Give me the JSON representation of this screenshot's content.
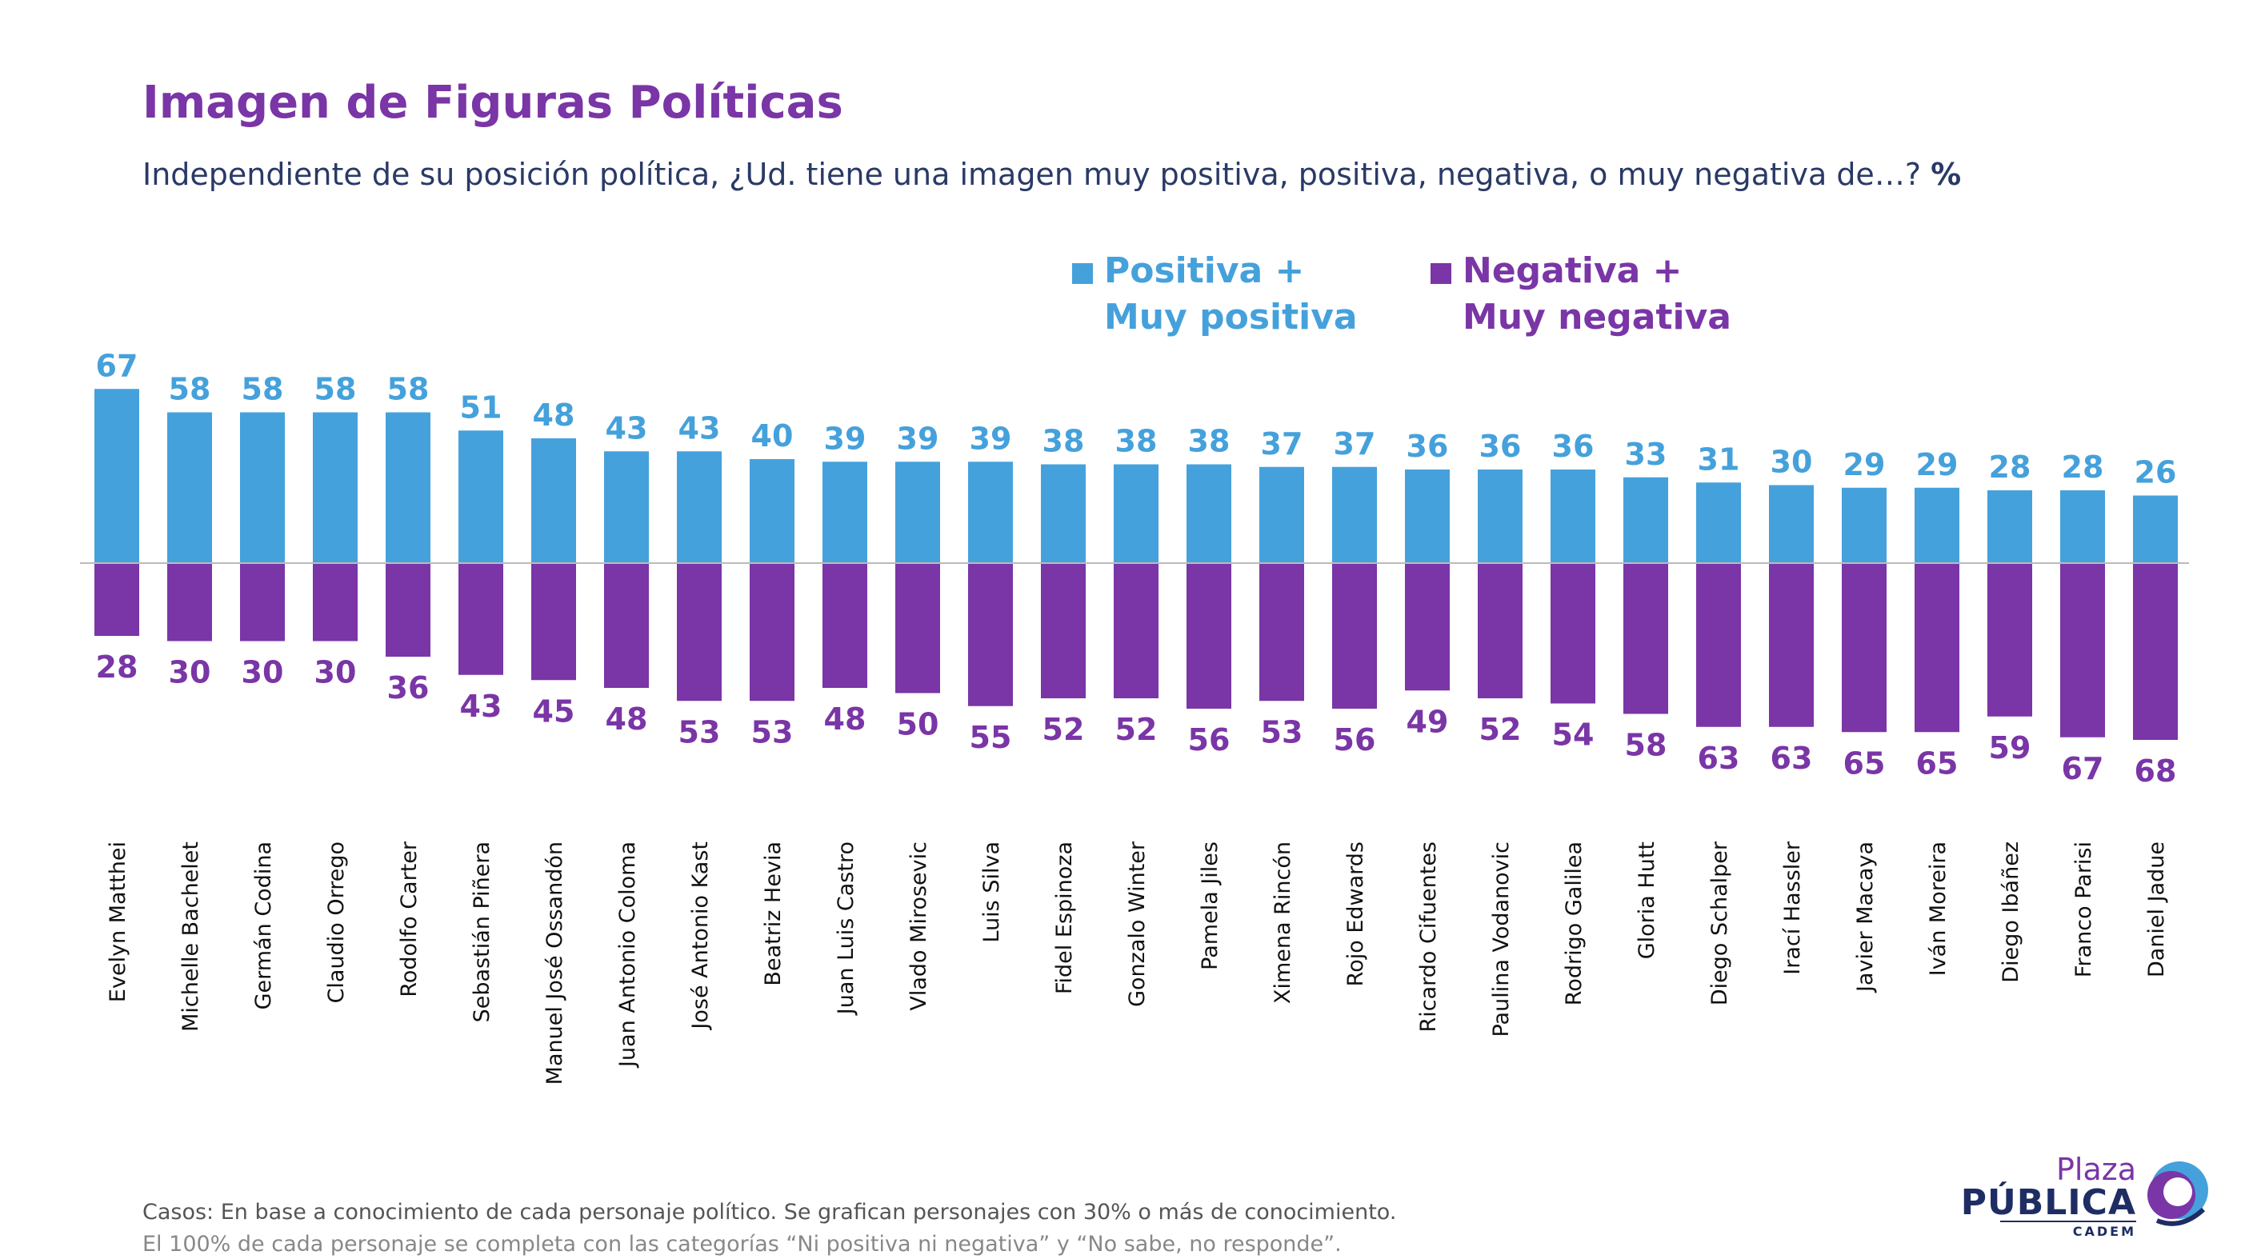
{
  "header": {
    "title": "Imagen de Figuras Políticas",
    "subtitle": "Independiente de su posición política, ¿Ud. tiene una imagen muy positiva, positiva, negativa, o muy negativa de…?",
    "subtitle_unit": "%"
  },
  "legend": {
    "positive_line1": "Positiva +",
    "positive_line2": "Muy positiva",
    "negative_line1": "Negativa +",
    "negative_line2": "Muy negativa"
  },
  "colors": {
    "positive": "#45a1db",
    "negative": "#7a35a6",
    "axis": "#bbbbbb"
  },
  "chart_data": {
    "type": "bar",
    "categories": [
      "Evelyn Matthei",
      "Michelle Bachelet",
      "Germán Codina",
      "Claudio Orrego",
      "Rodolfo Carter",
      "Sebastián Piñera",
      "Manuel José Ossandón",
      "Juan Antonio Coloma",
      "José Antonio Kast",
      "Beatriz Hevia",
      "Juan Luis Castro",
      "Vlado Mirosevic",
      "Luis Silva",
      "Fidel Espinoza",
      "Gonzalo Winter",
      "Pamela Jiles",
      "Ximena Rincón",
      "Rojo Edwards",
      "Ricardo Cifuentes",
      "Paulina Vodanovic",
      "Rodrigo Galilea",
      "Gloria Hutt",
      "Diego Schalper",
      "Irací Hassler",
      "Javier Macaya",
      "Iván Moreira",
      "Diego Ibáñez",
      "Franco Parisi",
      "Daniel Jadue"
    ],
    "series": [
      {
        "name": "Positiva + Muy positiva",
        "values": [
          67,
          58,
          58,
          58,
          58,
          51,
          48,
          43,
          43,
          40,
          39,
          39,
          39,
          38,
          38,
          38,
          37,
          37,
          36,
          36,
          36,
          33,
          31,
          30,
          29,
          29,
          28,
          28,
          26
        ]
      },
      {
        "name": "Negativa + Muy negativa",
        "values": [
          28,
          30,
          30,
          30,
          36,
          43,
          45,
          48,
          53,
          53,
          48,
          50,
          55,
          52,
          52,
          56,
          53,
          56,
          49,
          52,
          54,
          58,
          63,
          63,
          65,
          65,
          59,
          67,
          68
        ]
      }
    ],
    "ylim": [
      -70,
      70
    ]
  },
  "footnote": {
    "line1": "Casos: En base a conocimiento de cada personaje político. Se grafican personajes con 30% o más de conocimiento.",
    "line2": "El 100% de cada personaje se completa con las categorías “Ni positiva ni negativa” y “No sabe, no responde”."
  },
  "logo": {
    "plaza": "Plaza",
    "publica": "PÚBLICA",
    "cadem": "CADEM"
  }
}
